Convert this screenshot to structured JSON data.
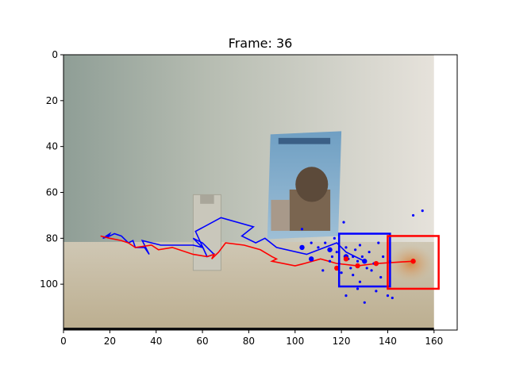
{
  "chart_data": {
    "type": "scatter",
    "title": "Frame: 36",
    "xlabel": "",
    "ylabel": "",
    "xlim": [
      0,
      170
    ],
    "ylim": [
      120,
      0
    ],
    "xticks": [
      0,
      20,
      40,
      60,
      80,
      100,
      120,
      140,
      160
    ],
    "yticks": [
      0,
      20,
      40,
      60,
      80,
      100
    ],
    "image_extent": {
      "x": [
        0,
        160
      ],
      "y": [
        0,
        120
      ]
    },
    "colors": {
      "blue": "#0000ff",
      "red": "#ff0000"
    },
    "series": [
      {
        "color": "#0000ff",
        "kind": "trajectory-line",
        "x": [
          19,
          20,
          17,
          20,
          22,
          25,
          28,
          30,
          31,
          35,
          37,
          34,
          42,
          56,
          60,
          59,
          56,
          60,
          65,
          62,
          57,
          68,
          82,
          77,
          83,
          87,
          92,
          105,
          118,
          122,
          130
        ],
        "y": [
          80,
          78,
          80,
          79,
          78,
          79,
          82,
          81,
          84,
          84,
          87,
          81,
          83,
          83,
          84,
          83,
          80,
          82,
          87,
          88,
          77,
          71,
          75,
          79,
          82,
          80,
          84,
          87,
          82,
          86,
          90
        ]
      },
      {
        "color": "#ff0000",
        "kind": "trajectory-line",
        "x": [
          16,
          20,
          25,
          28,
          31,
          38,
          41,
          47,
          56,
          62,
          65,
          64,
          67,
          70,
          78,
          85,
          90,
          92,
          90,
          100,
          104,
          111,
          118,
          127,
          135,
          151
        ],
        "y": [
          79,
          80,
          81,
          82,
          84,
          83,
          85,
          84,
          87,
          88,
          87,
          89,
          86,
          82,
          83,
          85,
          88,
          89,
          90,
          92,
          91,
          89,
          91,
          92,
          91,
          90
        ]
      },
      {
        "color": "#0000ff",
        "kind": "markers",
        "x": [
          103,
          107,
          115,
          122,
          130
        ],
        "y": [
          84,
          89,
          85,
          88,
          90
        ]
      },
      {
        "color": "#ff0000",
        "kind": "markers",
        "x": [
          118,
          122,
          127,
          135,
          151
        ],
        "y": [
          93,
          89,
          92,
          91,
          90
        ]
      },
      {
        "color": "#0000ff",
        "kind": "particles",
        "x": [
          103,
          107,
          110,
          112,
          113,
          115,
          116,
          117,
          118,
          119,
          120,
          121,
          122,
          122,
          123,
          124,
          125,
          125,
          126,
          127,
          127,
          128,
          128,
          129,
          130,
          131,
          132,
          133,
          134,
          135,
          136,
          137,
          138,
          140,
          141,
          142,
          151,
          155
        ],
        "y": [
          76,
          82,
          84,
          94,
          82,
          90,
          88,
          80,
          86,
          91,
          95,
          73,
          105,
          84,
          89,
          93,
          88,
          96,
          85,
          102,
          90,
          83,
          99,
          88,
          108,
          93,
          86,
          94,
          91,
          103,
          82,
          97,
          88,
          105,
          90,
          106,
          70,
          68
        ]
      }
    ],
    "boxes": [
      {
        "color": "#0000ff",
        "x0": 119,
        "y0": 78,
        "x1": 141,
        "y1": 101
      },
      {
        "color": "#ff0000",
        "x0": 140,
        "y0": 79,
        "x1": 162,
        "y1": 102
      }
    ]
  }
}
